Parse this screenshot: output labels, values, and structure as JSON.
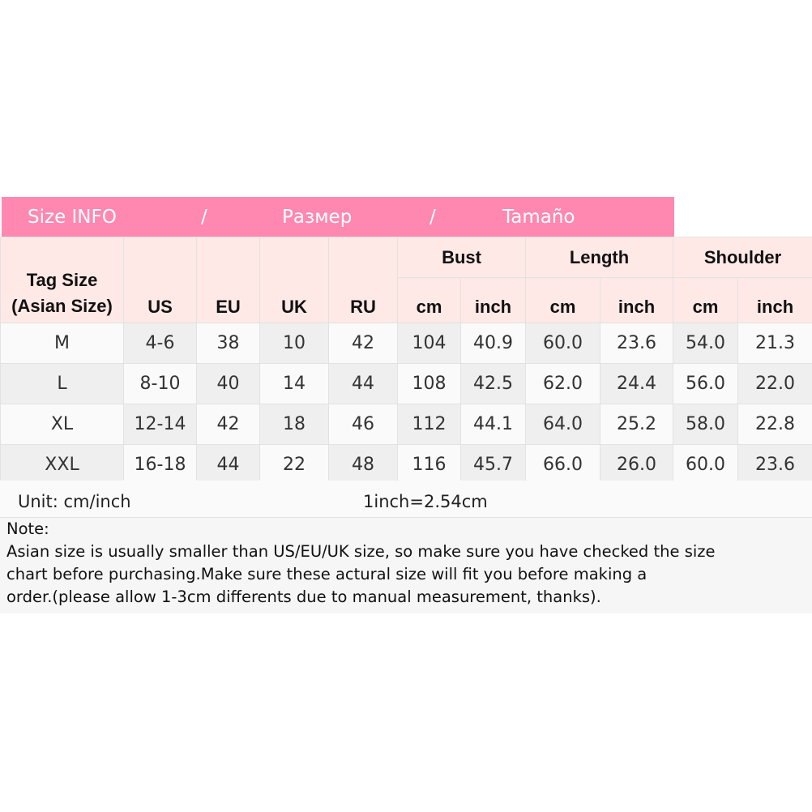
{
  "banner": {
    "en": "Size INFO",
    "sep": "/",
    "ru": "Размер",
    "es": "Tamaño"
  },
  "header": {
    "tag": "Tag Size",
    "tag_sub": "(Asian Size)",
    "us": "US",
    "eu": "EU",
    "uk": "UK",
    "ru": "RU",
    "bust": "Bust",
    "length": "Length",
    "shoulder": "Shoulder",
    "cm": "cm",
    "inch": "inch"
  },
  "rows": [
    [
      "M",
      "4-6",
      "38",
      "10",
      "42",
      "104",
      "40.9",
      "60.0",
      "23.6",
      "54.0",
      "21.3"
    ],
    [
      "L",
      "8-10",
      "40",
      "14",
      "44",
      "108",
      "42.5",
      "62.0",
      "24.4",
      "56.0",
      "22.0"
    ],
    [
      "XL",
      "12-14",
      "42",
      "18",
      "46",
      "112",
      "44.1",
      "64.0",
      "25.2",
      "58.0",
      "22.8"
    ],
    [
      "XXL",
      "16-18",
      "44",
      "22",
      "48",
      "116",
      "45.7",
      "66.0",
      "26.0",
      "60.0",
      "23.6"
    ]
  ],
  "unit": {
    "label": "Unit: cm/inch",
    "conversion": "1inch=2.54cm"
  },
  "note": {
    "title": "Note:",
    "line1": "Asian size is usually smaller than US/EU/UK size, so make sure you have checked the size",
    "line2": "chart before purchasing.Make sure these actural size will fit you before making a",
    "line3": "order.(please allow 1-3cm differents due to manual measurement, thanks)."
  },
  "colors": {
    "banner": "#ff88b0",
    "header_bg": "#ffe9e7",
    "cell_grey": "#efefef",
    "cell_light": "#fafafa"
  }
}
